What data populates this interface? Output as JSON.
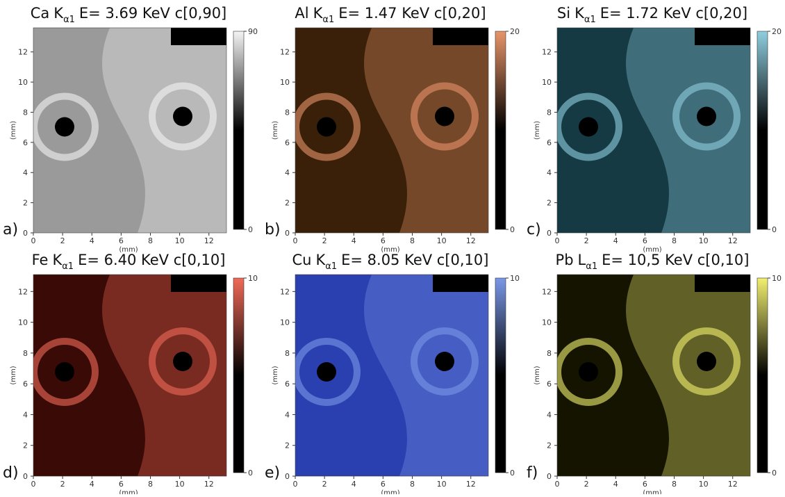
{
  "panels": [
    {
      "letter": "a)",
      "element": "Ca",
      "line": "K",
      "sub": "α1",
      "rest": "E= 3.69 KeV c[0,90]",
      "xlabel": "(mm)",
      "ylabel": "(mm)",
      "xlim": [
        0,
        13.2
      ],
      "ylim": [
        0,
        13.6
      ],
      "xticks": [
        0,
        2,
        4,
        6,
        8,
        10,
        12
      ],
      "yticks": [
        0,
        2,
        4,
        6,
        8,
        10,
        12
      ],
      "cbar_ticks": [
        0,
        90
      ],
      "cmap": "#f4f4f4",
      "base": "#9a9a9a"
    },
    {
      "letter": "b)",
      "element": "Al",
      "line": "K",
      "sub": "α1",
      "rest": "E= 1.47 KeV c[0,20]",
      "xlabel": "(mm)",
      "ylabel": "(mm)",
      "xlim": [
        0,
        13.2
      ],
      "ylim": [
        0,
        13.6
      ],
      "xticks": [
        0,
        2,
        4,
        6,
        8,
        10,
        12
      ],
      "yticks": [
        0,
        2,
        4,
        6,
        8,
        10,
        12
      ],
      "cbar_ticks": [
        0,
        20
      ],
      "cmap": "#e8956a",
      "base": "#3a2008"
    },
    {
      "letter": "c)",
      "element": "Si",
      "line": "K",
      "sub": "α1",
      "rest": "E= 1.72 KeV c[0,20]",
      "xlabel": "(mm)",
      "ylabel": "(mm)",
      "xlim": [
        0,
        13.2
      ],
      "ylim": [
        0,
        13.6
      ],
      "xticks": [
        0,
        2,
        4,
        6,
        8,
        10,
        12
      ],
      "yticks": [
        0,
        2,
        4,
        6,
        8,
        10,
        12
      ],
      "cbar_ticks": [
        0,
        20
      ],
      "cmap": "#8fcfe0",
      "base": "#153a44"
    },
    {
      "letter": "d)",
      "element": "Fe",
      "line": "K",
      "sub": "α1",
      "rest": "E= 6.40 KeV c[0,10]",
      "xlabel": "(mm)",
      "ylabel": "(mm)",
      "xlim": [
        0,
        13.2
      ],
      "ylim": [
        0,
        13.1
      ],
      "xticks": [
        0,
        2,
        4,
        6,
        8,
        10,
        12
      ],
      "yticks": [
        0,
        2,
        4,
        6,
        8,
        10,
        12
      ],
      "cbar_ticks": [
        0,
        10
      ],
      "cmap": "#f06a58",
      "base": "#3a0a06"
    },
    {
      "letter": "e)",
      "element": "Cu",
      "line": "K",
      "sub": "α1",
      "rest": "E= 8.05 KeV c[0,10]",
      "xlabel": "(mm)",
      "ylabel": "(mm)",
      "xlim": [
        0,
        13.2
      ],
      "ylim": [
        0,
        13.1
      ],
      "xticks": [
        0,
        2,
        4,
        6,
        8,
        10,
        12
      ],
      "yticks": [
        0,
        2,
        4,
        6,
        8,
        10,
        12
      ],
      "cbar_ticks": [
        0,
        10
      ],
      "cmap": "#7a98e8",
      "base": "#2a40b0"
    },
    {
      "letter": "f)",
      "element": "Pb",
      "line": "L",
      "sub": "α1",
      "rest": "E= 10,5 KeV c[0,10]",
      "xlabel": "(mm)",
      "ylabel": "(mm)",
      "xlim": [
        0,
        13.2
      ],
      "ylim": [
        0,
        13.1
      ],
      "xticks": [
        0,
        2,
        4,
        6,
        8,
        10,
        12
      ],
      "yticks": [
        0,
        2,
        4,
        6,
        8,
        10,
        12
      ],
      "cbar_ticks": [
        0,
        10
      ],
      "cmap": "#f2f070",
      "base": "#141400"
    }
  ]
}
